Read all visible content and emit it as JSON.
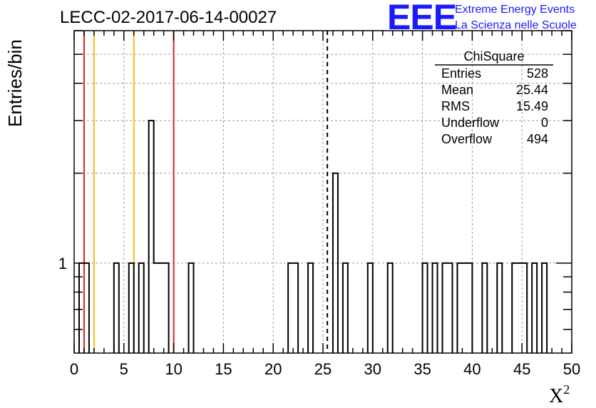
{
  "title": "LECC-02-2017-06-14-00027",
  "logo": {
    "mark": "EEE",
    "line1": "Extreme Energy Events",
    "line2": "La Scienza nelle Scuole"
  },
  "stats": {
    "name": "ChiSquare",
    "rows": [
      {
        "label": "Entries",
        "value": "528"
      },
      {
        "label": "Mean",
        "value": "25.44"
      },
      {
        "label": "RMS",
        "value": "15.49"
      },
      {
        "label": "Underflow",
        "value": "0"
      },
      {
        "label": "Overflow",
        "value": "494"
      }
    ]
  },
  "chart_data": {
    "type": "bar",
    "histogram": "step",
    "ylabel": "Entries/bin",
    "xlabel": "X",
    "xlabel_superscript": "2",
    "xlim": [
      0,
      50
    ],
    "x_ticks": [
      0,
      5,
      10,
      15,
      20,
      25,
      30,
      35,
      40,
      45,
      50
    ],
    "ylim": [
      0.5,
      6
    ],
    "yscale": "log",
    "y_tick_labels": [
      {
        "value": 1,
        "label": "1"
      }
    ],
    "grid": true,
    "bin_width": 0.5,
    "bins": [
      {
        "x": 0.5,
        "y": 1
      },
      {
        "x": 1.0,
        "y": 1
      },
      {
        "x": 4.0,
        "y": 1
      },
      {
        "x": 5.5,
        "y": 1
      },
      {
        "x": 6.5,
        "y": 1
      },
      {
        "x": 7.5,
        "y": 3
      },
      {
        "x": 8.0,
        "y": 1
      },
      {
        "x": 8.5,
        "y": 1
      },
      {
        "x": 9.0,
        "y": 1
      },
      {
        "x": 11.5,
        "y": 1
      },
      {
        "x": 21.5,
        "y": 1
      },
      {
        "x": 22.0,
        "y": 1
      },
      {
        "x": 23.5,
        "y": 1
      },
      {
        "x": 26.0,
        "y": 2
      },
      {
        "x": 27.0,
        "y": 1
      },
      {
        "x": 29.5,
        "y": 1
      },
      {
        "x": 31.5,
        "y": 1
      },
      {
        "x": 35.0,
        "y": 1
      },
      {
        "x": 36.0,
        "y": 1
      },
      {
        "x": 37.0,
        "y": 1
      },
      {
        "x": 37.5,
        "y": 1
      },
      {
        "x": 38.5,
        "y": 1
      },
      {
        "x": 39.0,
        "y": 1
      },
      {
        "x": 39.5,
        "y": 1
      },
      {
        "x": 41.0,
        "y": 1
      },
      {
        "x": 42.5,
        "y": 1
      },
      {
        "x": 44.0,
        "y": 1
      },
      {
        "x": 44.5,
        "y": 1
      },
      {
        "x": 45.0,
        "y": 1
      },
      {
        "x": 46.0,
        "y": 1
      },
      {
        "x": 47.0,
        "y": 1
      }
    ],
    "vlines": [
      {
        "x": 1,
        "color": "#dd2222",
        "style": "solid"
      },
      {
        "x": 10,
        "color": "#dd2222",
        "style": "solid"
      },
      {
        "x": 2,
        "color": "#f2c21a",
        "style": "solid"
      },
      {
        "x": 6,
        "color": "#f2c21a",
        "style": "solid"
      },
      {
        "x": 25.44,
        "color": "#000000",
        "style": "dashed"
      }
    ]
  }
}
